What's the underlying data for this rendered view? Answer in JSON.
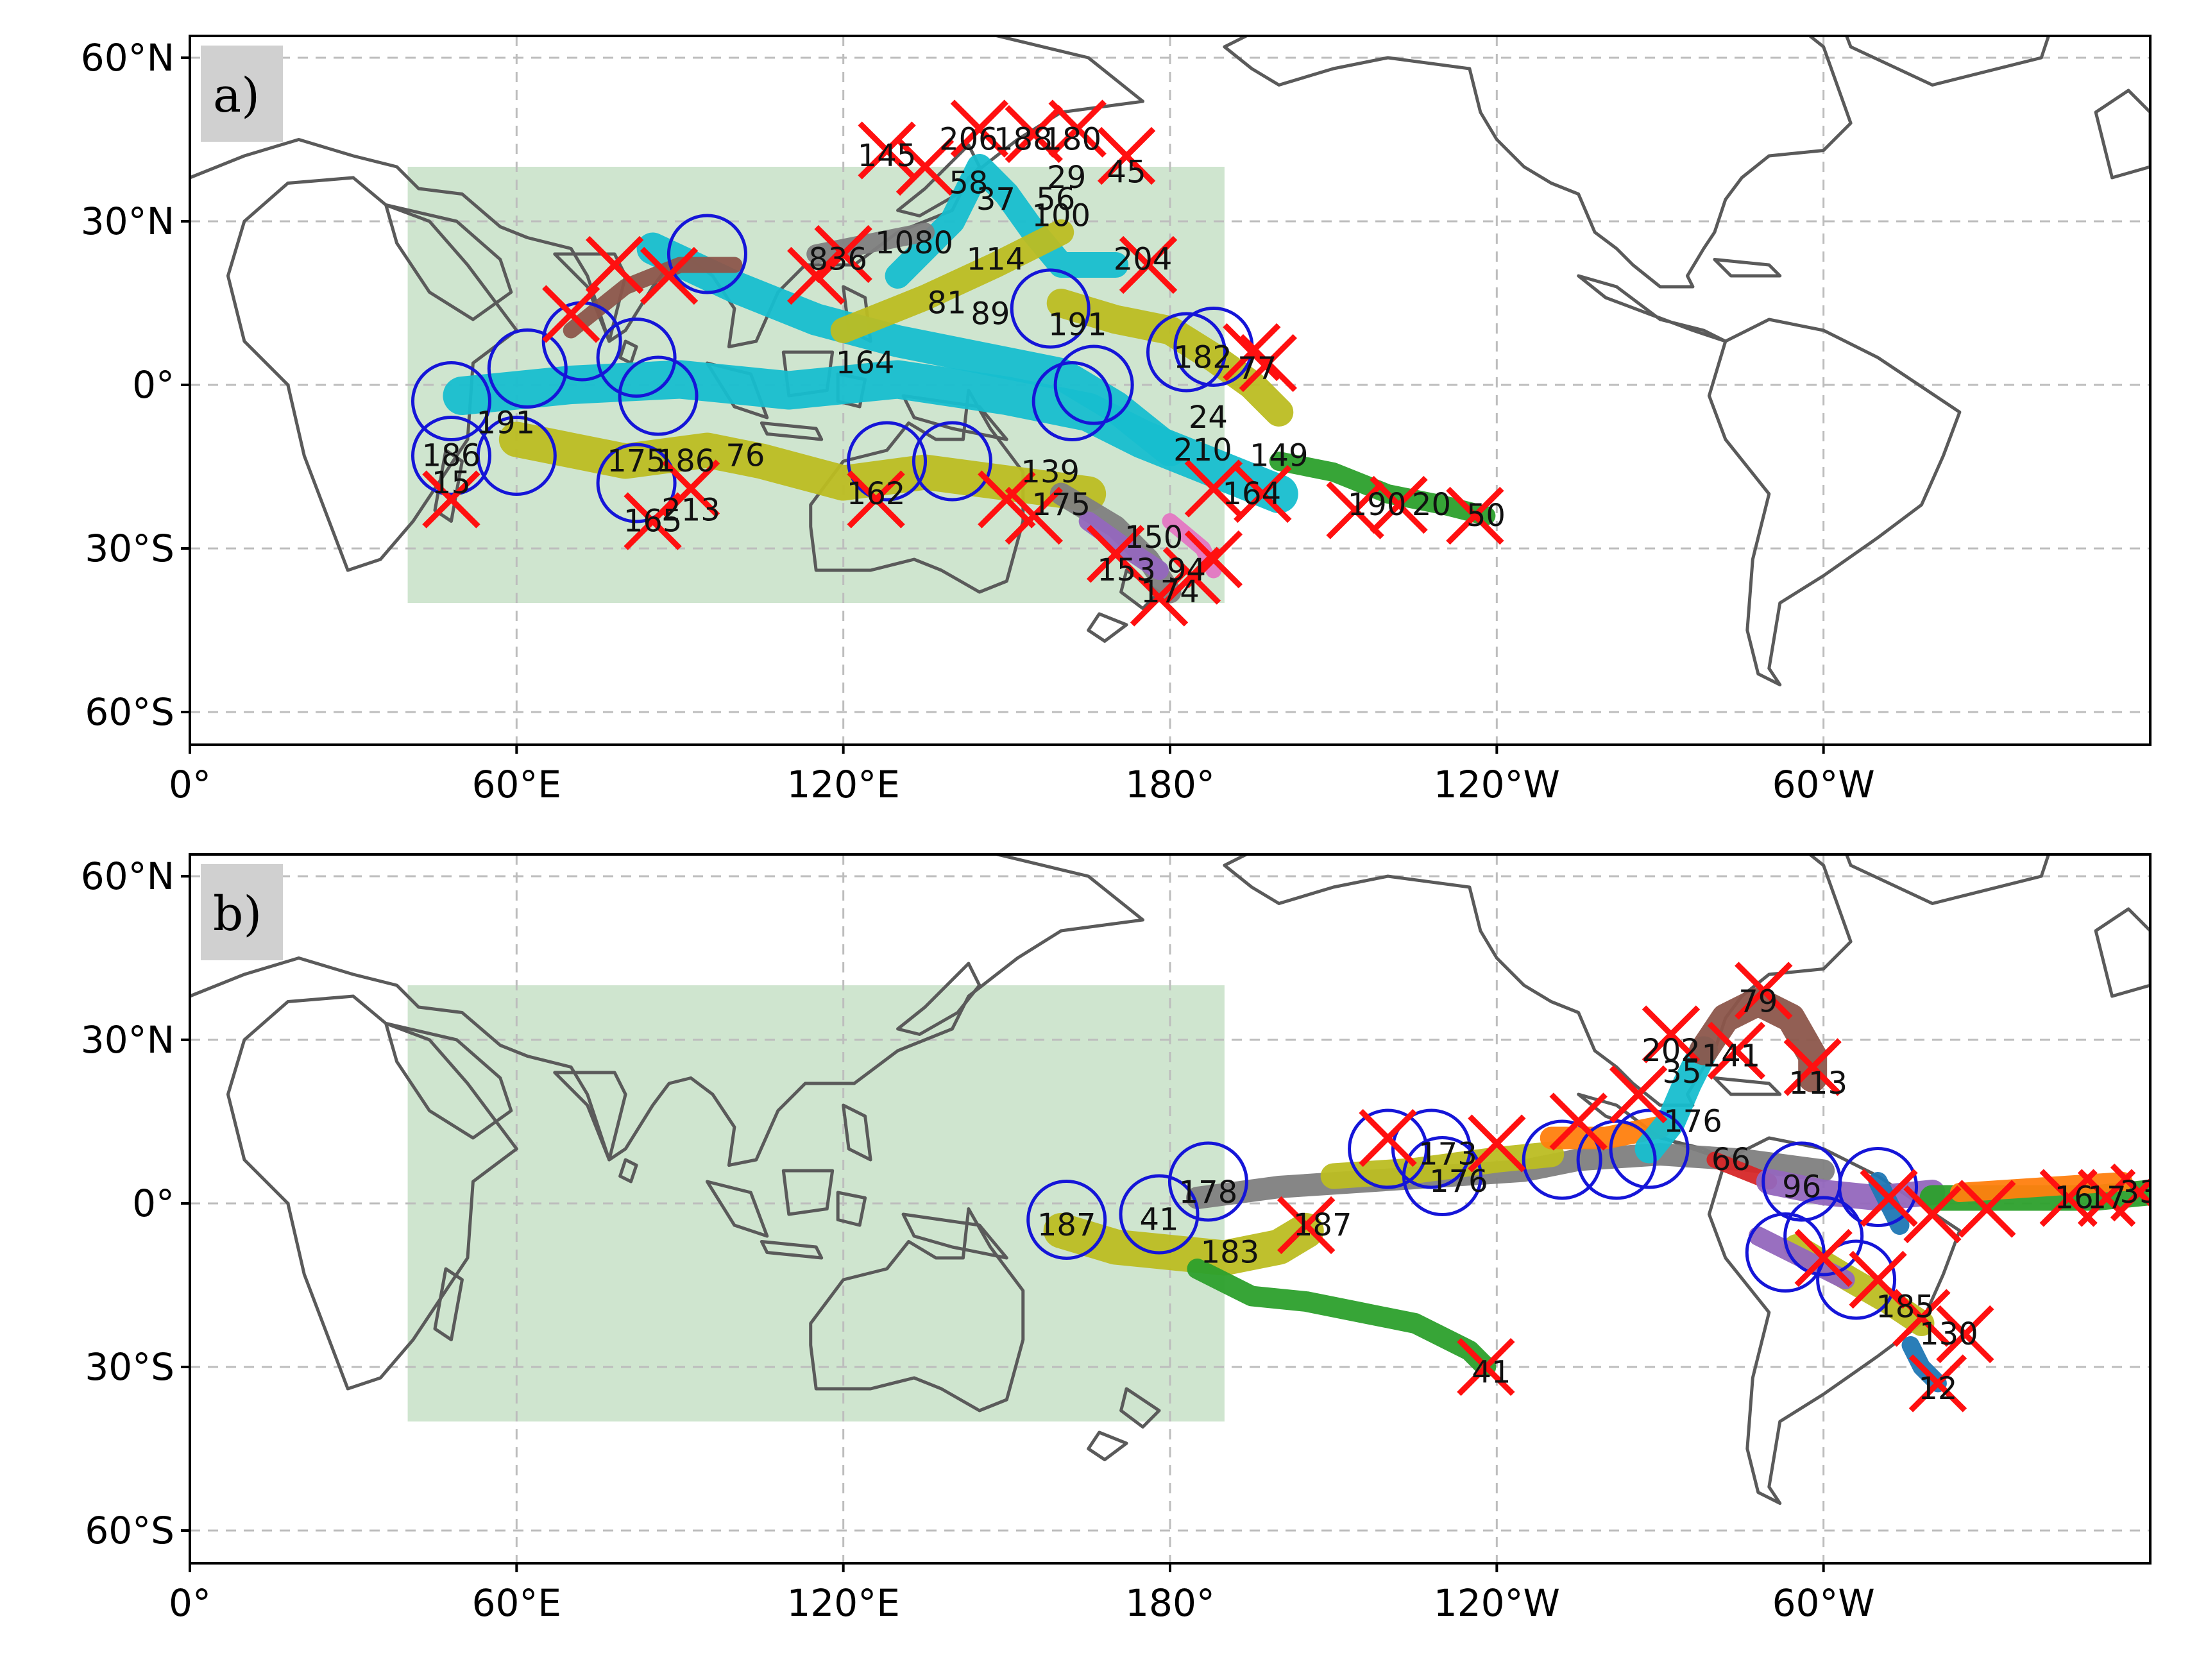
{
  "panels": [
    {
      "label": "a)",
      "region_lonlat": {
        "lon": [
          40,
          190
        ],
        "lat": [
          -40,
          40
        ]
      },
      "start_markers": [
        {
          "lon": 48,
          "lat": -3
        },
        {
          "lon": 48,
          "lat": -13
        },
        {
          "lon": 60,
          "lat": -13
        },
        {
          "lon": 62,
          "lat": 3
        },
        {
          "lon": 72,
          "lat": 8
        },
        {
          "lon": 82,
          "lat": 5
        },
        {
          "lon": 86,
          "lat": -2
        },
        {
          "lon": 95,
          "lat": 24
        },
        {
          "lon": 158,
          "lat": 14
        },
        {
          "lon": 162,
          "lat": -3
        },
        {
          "lon": 128,
          "lat": -14
        },
        {
          "lon": 140,
          "lat": -14
        },
        {
          "lon": 166,
          "lat": 0
        },
        {
          "lon": 82,
          "lat": -18
        },
        {
          "lon": 183,
          "lat": 6
        },
        {
          "lon": 188,
          "lat": 7
        }
      ],
      "end_markers": [
        {
          "lon": 48,
          "lat": -21
        },
        {
          "lon": 85,
          "lat": -25
        },
        {
          "lon": 92,
          "lat": -19
        },
        {
          "lon": 126,
          "lat": -21
        },
        {
          "lon": 150,
          "lat": -21
        },
        {
          "lon": 155,
          "lat": -24
        },
        {
          "lon": 170,
          "lat": -31
        },
        {
          "lon": 178,
          "lat": -39
        },
        {
          "lon": 184,
          "lat": -35
        },
        {
          "lon": 188,
          "lat": -32
        },
        {
          "lon": 197,
          "lat": -20
        },
        {
          "lon": 214,
          "lat": -23
        },
        {
          "lon": 222,
          "lat": -22
        },
        {
          "lon": 236,
          "lat": -24
        },
        {
          "lon": 188,
          "lat": -19
        },
        {
          "lon": 195,
          "lat": 6
        },
        {
          "lon": 198,
          "lat": 4
        },
        {
          "lon": 176,
          "lat": 22
        },
        {
          "lon": 128,
          "lat": 43
        },
        {
          "lon": 145,
          "lat": 47
        },
        {
          "lon": 155,
          "lat": 46
        },
        {
          "lon": 163,
          "lat": 47
        },
        {
          "lon": 172,
          "lat": 42
        },
        {
          "lon": 135,
          "lat": 40
        },
        {
          "lon": 70,
          "lat": 13
        },
        {
          "lon": 78,
          "lat": 22
        },
        {
          "lon": 88,
          "lat": 20
        },
        {
          "lon": 115,
          "lat": 20
        },
        {
          "lon": 120,
          "lat": 24
        }
      ],
      "track_labels": [
        {
          "t": "145",
          "lon": 128,
          "lat": 42
        },
        {
          "t": "206",
          "lon": 143,
          "lat": 45
        },
        {
          "t": "188",
          "lon": 153,
          "lat": 45
        },
        {
          "t": "180",
          "lon": 162,
          "lat": 45
        },
        {
          "t": "45",
          "lon": 172,
          "lat": 39
        },
        {
          "t": "29",
          "lon": 161,
          "lat": 38
        },
        {
          "t": "56",
          "lon": 159,
          "lat": 34
        },
        {
          "t": "100",
          "lon": 160,
          "lat": 31
        },
        {
          "t": "58",
          "lon": 143,
          "lat": 37
        },
        {
          "t": "37",
          "lon": 148,
          "lat": 34
        },
        {
          "t": "1080",
          "lon": 133,
          "lat": 26
        },
        {
          "t": "114",
          "lon": 148,
          "lat": 23
        },
        {
          "t": "204",
          "lon": 175,
          "lat": 23
        },
        {
          "t": "836",
          "lon": 119,
          "lat": 23
        },
        {
          "t": "191",
          "lon": 163,
          "lat": 11
        },
        {
          "t": "182",
          "lon": 186,
          "lat": 5
        },
        {
          "t": "77",
          "lon": 196,
          "lat": 3
        },
        {
          "t": "24",
          "lon": 187,
          "lat": -6
        },
        {
          "t": "149",
          "lon": 200,
          "lat": -13
        },
        {
          "t": "210",
          "lon": 186,
          "lat": -12
        },
        {
          "t": "164",
          "lon": 195,
          "lat": -20
        },
        {
          "t": "190",
          "lon": 218,
          "lat": -22
        },
        {
          "t": "20",
          "lon": 228,
          "lat": -22
        },
        {
          "t": "50",
          "lon": 238,
          "lat": -24
        },
        {
          "t": "150",
          "lon": 177,
          "lat": -28
        },
        {
          "t": "153",
          "lon": 172,
          "lat": -34
        },
        {
          "t": "174",
          "lon": 180,
          "lat": -38
        },
        {
          "t": "94",
          "lon": 183,
          "lat": -34
        },
        {
          "t": "175",
          "lon": 160,
          "lat": -22
        },
        {
          "t": "139",
          "lon": 158,
          "lat": -16
        },
        {
          "t": "162",
          "lon": 126,
          "lat": -20
        },
        {
          "t": "76",
          "lon": 102,
          "lat": -13
        },
        {
          "t": "186",
          "lon": 48,
          "lat": -13
        },
        {
          "t": "175",
          "lon": 82,
          "lat": -14
        },
        {
          "t": "186",
          "lon": 91,
          "lat": -14
        },
        {
          "t": "213",
          "lon": 92,
          "lat": -23
        },
        {
          "t": "165",
          "lon": 85,
          "lat": -25
        },
        {
          "t": "15",
          "lon": 48,
          "lat": -18
        },
        {
          "t": "191",
          "lon": 58,
          "lat": -7
        },
        {
          "t": "164",
          "lon": 124,
          "lat": 4
        },
        {
          "t": "89",
          "lon": 147,
          "lat": 13
        },
        {
          "t": "81",
          "lon": 139,
          "lat": 15
        }
      ]
    },
    {
      "label": "b)",
      "region_lonlat": {
        "lon": [
          40,
          190
        ],
        "lat": [
          -40,
          40
        ]
      },
      "start_markers": [
        {
          "lon": 161,
          "lat": -3
        },
        {
          "lon": 178,
          "lat": -2
        },
        {
          "lon": 187,
          "lat": 4
        },
        {
          "lon": 220,
          "lat": 10
        },
        {
          "lon": 228,
          "lat": 10
        },
        {
          "lon": 230,
          "lat": 5
        },
        {
          "lon": 252,
          "lat": 8
        },
        {
          "lon": 262,
          "lat": 8
        },
        {
          "lon": 268,
          "lat": 10
        },
        {
          "lon": 296,
          "lat": 4
        },
        {
          "lon": 293,
          "lat": -9
        },
        {
          "lon": 300,
          "lat": -6
        },
        {
          "lon": 306,
          "lat": -14
        },
        {
          "lon": 310,
          "lat": 3
        }
      ],
      "end_markers": [
        {
          "lon": 205,
          "lat": -4
        },
        {
          "lon": 238,
          "lat": -30
        },
        {
          "lon": 220,
          "lat": 12
        },
        {
          "lon": 240,
          "lat": 11
        },
        {
          "lon": 255,
          "lat": 15
        },
        {
          "lon": 266,
          "lat": 20
        },
        {
          "lon": 272,
          "lat": 31
        },
        {
          "lon": 284,
          "lat": 28
        },
        {
          "lon": 289,
          "lat": 39
        },
        {
          "lon": 298,
          "lat": 25
        },
        {
          "lon": 318,
          "lat": -21
        },
        {
          "lon": 326,
          "lat": -24
        },
        {
          "lon": 321,
          "lat": -33
        },
        {
          "lon": 300,
          "lat": -10
        },
        {
          "lon": 310,
          "lat": -14
        },
        {
          "lon": 312,
          "lat": 1
        },
        {
          "lon": 320,
          "lat": -2
        },
        {
          "lon": 330,
          "lat": -1
        },
        {
          "lon": 345,
          "lat": 1
        },
        {
          "lon": 352,
          "lat": 1
        },
        {
          "lon": 358,
          "lat": 2
        }
      ],
      "track_labels": [
        {
          "t": "79",
          "lon": 288,
          "lat": 37
        },
        {
          "t": "202",
          "lon": 272,
          "lat": 28
        },
        {
          "t": "141",
          "lon": 283,
          "lat": 27
        },
        {
          "t": "35",
          "lon": 274,
          "lat": 24
        },
        {
          "t": "113",
          "lon": 299,
          "lat": 22
        },
        {
          "t": "176",
          "lon": 276,
          "lat": 15
        },
        {
          "t": "66",
          "lon": 283,
          "lat": 8
        },
        {
          "t": "173",
          "lon": 231,
          "lat": 9
        },
        {
          "t": "176",
          "lon": 233,
          "lat": 4
        },
        {
          "t": "178",
          "lon": 187,
          "lat": 2
        },
        {
          "t": "187",
          "lon": 161,
          "lat": -4
        },
        {
          "t": "41",
          "lon": 178,
          "lat": -3
        },
        {
          "t": "187",
          "lon": 208,
          "lat": -4
        },
        {
          "t": "183",
          "lon": 191,
          "lat": -9
        },
        {
          "t": "41",
          "lon": 239,
          "lat": -31
        },
        {
          "t": "96",
          "lon": 296,
          "lat": 3
        },
        {
          "t": "16",
          "lon": 346,
          "lat": 1
        },
        {
          "t": "17",
          "lon": 352,
          "lat": 1
        },
        {
          "t": "33",
          "lon": 358,
          "lat": 2
        },
        {
          "t": "185",
          "lon": 315,
          "lat": -19
        },
        {
          "t": "130",
          "lon": 323,
          "lat": -24
        },
        {
          "t": "12",
          "lon": 321,
          "lat": -34
        }
      ]
    }
  ]
}
